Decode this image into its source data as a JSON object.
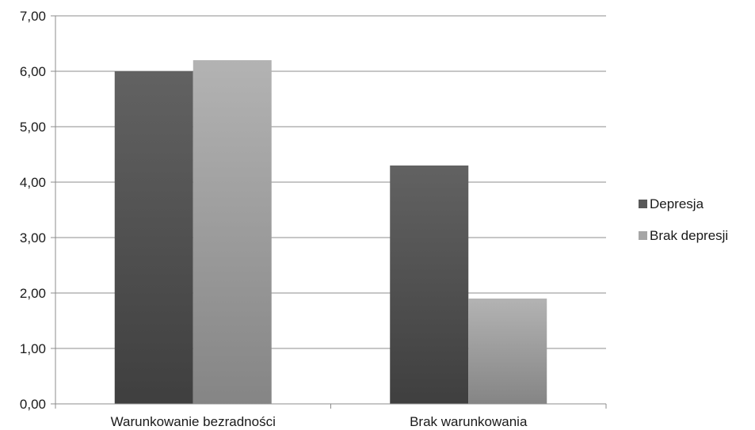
{
  "chart_data": {
    "type": "bar",
    "categories": [
      "Warunkowanie bezradności",
      "Brak warunkowania"
    ],
    "series": [
      {
        "name": "Depresja",
        "values": [
          6.0,
          4.3
        ],
        "color": "#595959"
      },
      {
        "name": "Brak depresji",
        "values": [
          6.2,
          1.9
        ],
        "color": "#a6a6a6"
      }
    ],
    "ylim": [
      0,
      7
    ],
    "yticks": [
      "0,00",
      "1,00",
      "2,00",
      "3,00",
      "4,00",
      "5,00",
      "6,00",
      "7,00"
    ],
    "grid": true,
    "legend_position": "right"
  }
}
